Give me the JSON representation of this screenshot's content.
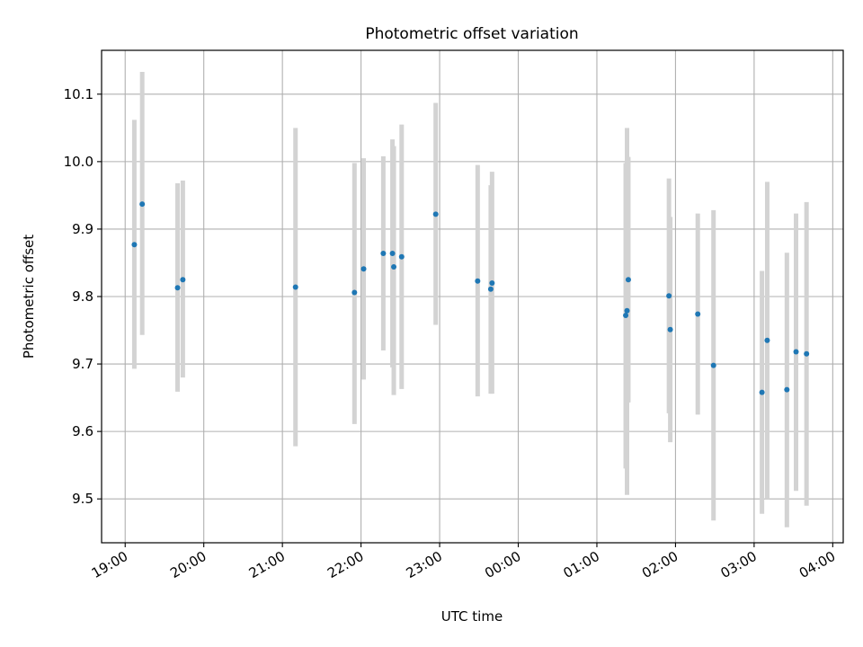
{
  "chart_data": {
    "type": "scatter",
    "title": "Photometric offset variation",
    "xlabel": "UTC time",
    "ylabel": "Photometric offset",
    "x_unit": "UTC time (HH:MM), night spanning midnight",
    "xlim": [
      "18:42",
      "04:08"
    ],
    "ylim": [
      9.435,
      10.165
    ],
    "x_ticks": [
      "19:00",
      "20:00",
      "21:00",
      "22:00",
      "23:00",
      "00:00",
      "01:00",
      "02:00",
      "03:00",
      "04:00"
    ],
    "y_ticks": [
      9.5,
      9.6,
      9.7,
      9.8,
      9.9,
      10.0,
      10.1
    ],
    "y_tick_labels": [
      "9.5",
      "9.6",
      "9.7",
      "9.8",
      "9.9",
      "10.0",
      "10.1"
    ],
    "grid": true,
    "legend": "none",
    "colors": {
      "points": "#1f77b4",
      "errorbars": "#d3d3d3"
    },
    "series": [
      {
        "points": [
          {
            "x": "19:07",
            "y": 9.877,
            "err_low": 9.693,
            "err_high": 10.062
          },
          {
            "x": "19:13",
            "y": 9.937,
            "err_low": 9.743,
            "err_high": 10.133
          },
          {
            "x": "19:40",
            "y": 9.813,
            "err_low": 9.659,
            "err_high": 9.968
          },
          {
            "x": "19:44",
            "y": 9.825,
            "err_low": 9.68,
            "err_high": 9.972
          },
          {
            "x": "21:10",
            "y": 9.814,
            "err_low": 9.578,
            "err_high": 10.05
          },
          {
            "x": "21:55",
            "y": 9.806,
            "err_low": 9.611,
            "err_high": 9.998
          },
          {
            "x": "22:02",
            "y": 9.841,
            "err_low": 9.677,
            "err_high": 10.005
          },
          {
            "x": "22:17",
            "y": 9.864,
            "err_low": 9.72,
            "err_high": 10.008
          },
          {
            "x": "22:24",
            "y": 9.864,
            "err_low": 9.695,
            "err_high": 10.033
          },
          {
            "x": "22:25",
            "y": 9.844,
            "err_low": 9.654,
            "err_high": 10.023
          },
          {
            "x": "22:31",
            "y": 9.859,
            "err_low": 9.663,
            "err_high": 10.055
          },
          {
            "x": "22:57",
            "y": 9.922,
            "err_low": 9.758,
            "err_high": 10.087
          },
          {
            "x": "23:29",
            "y": 9.823,
            "err_low": 9.652,
            "err_high": 9.995
          },
          {
            "x": "23:39",
            "y": 9.811,
            "err_low": 9.656,
            "err_high": 9.965
          },
          {
            "x": "23:40",
            "y": 9.82,
            "err_low": 9.656,
            "err_high": 9.985
          },
          {
            "x": "01:22",
            "y": 9.772,
            "err_low": 9.545,
            "err_high": 9.998
          },
          {
            "x": "01:23",
            "y": 9.779,
            "err_low": 9.506,
            "err_high": 10.05
          },
          {
            "x": "01:24",
            "y": 9.825,
            "err_low": 9.643,
            "err_high": 10.007
          },
          {
            "x": "01:55",
            "y": 9.801,
            "err_low": 9.627,
            "err_high": 9.975
          },
          {
            "x": "01:56",
            "y": 9.751,
            "err_low": 9.584,
            "err_high": 9.918
          },
          {
            "x": "02:17",
            "y": 9.774,
            "err_low": 9.625,
            "err_high": 9.923
          },
          {
            "x": "02:29",
            "y": 9.698,
            "err_low": 9.468,
            "err_high": 9.928
          },
          {
            "x": "03:06",
            "y": 9.658,
            "err_low": 9.478,
            "err_high": 9.838
          },
          {
            "x": "03:10",
            "y": 9.735,
            "err_low": 9.5,
            "err_high": 9.97
          },
          {
            "x": "03:25",
            "y": 9.662,
            "err_low": 9.458,
            "err_high": 9.865
          },
          {
            "x": "03:32",
            "y": 9.718,
            "err_low": 9.512,
            "err_high": 9.923
          },
          {
            "x": "03:40",
            "y": 9.715,
            "err_low": 9.49,
            "err_high": 9.94
          }
        ]
      }
    ]
  }
}
